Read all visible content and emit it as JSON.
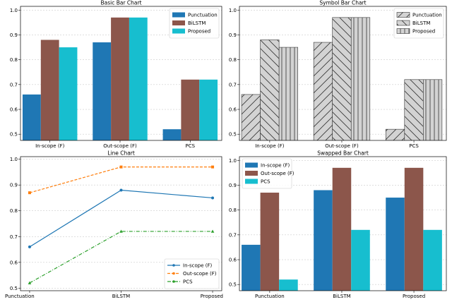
{
  "colors": {
    "blue": "#1f77b4",
    "brown": "#8c564b",
    "cyan": "#17becf",
    "orange": "#ff7f0e",
    "green": "#2ca02c",
    "hatch_fill": "#d3d3d3"
  },
  "chart_data": [
    {
      "type": "bar",
      "title": "Basic Bar Chart",
      "categories": [
        "In-scope (F)",
        "Out-scope (F)",
        "PCS"
      ],
      "series": [
        {
          "name": "Punctuation",
          "values": [
            0.66,
            0.87,
            0.52
          ],
          "color": "#1f77b4"
        },
        {
          "name": "BiLSTM",
          "values": [
            0.88,
            0.97,
            0.72
          ],
          "color": "#8c564b"
        },
        {
          "name": "Proposed",
          "values": [
            0.85,
            0.97,
            0.72
          ],
          "color": "#17becf"
        }
      ],
      "yticks": [
        "0.5",
        "0.6",
        "0.7",
        "0.8",
        "0.9",
        "1.0"
      ],
      "ylim": [
        0.475,
        1.015
      ],
      "grid": "y dashed",
      "legend": "top-right"
    },
    {
      "type": "bar",
      "title": "Symbol Bar Chart",
      "categories": [
        "In-scope (F)",
        "Out-scope (F)",
        "PCS"
      ],
      "series": [
        {
          "name": "Punctuation",
          "values": [
            0.66,
            0.87,
            0.52
          ],
          "hatch": "/"
        },
        {
          "name": "BiLSTM",
          "values": [
            0.88,
            0.97,
            0.72
          ],
          "hatch": "\\"
        },
        {
          "name": "Proposed",
          "values": [
            0.85,
            0.97,
            0.72
          ],
          "hatch": "|"
        }
      ],
      "yticks": [
        "0.5",
        "0.6",
        "0.7",
        "0.8",
        "0.9",
        "1.0"
      ],
      "ylim": [
        0.475,
        1.015
      ],
      "grid": "y dashed",
      "legend": "top-right"
    },
    {
      "type": "line",
      "title": "Line Chart",
      "categories": [
        "Punctuation",
        "BiLSTM",
        "Proposed"
      ],
      "series": [
        {
          "name": "In-scope (F)",
          "values": [
            0.66,
            0.88,
            0.85
          ],
          "color": "#1f77b4",
          "style": "solid",
          "marker": "circle"
        },
        {
          "name": "Out-scope (F)",
          "values": [
            0.87,
            0.97,
            0.97
          ],
          "color": "#ff7f0e",
          "style": "dashed",
          "marker": "square"
        },
        {
          "name": "PCS",
          "values": [
            0.52,
            0.72,
            0.72
          ],
          "color": "#2ca02c",
          "style": "dashdot",
          "marker": "triangle"
        }
      ],
      "yticks": [
        "0.5",
        "0.6",
        "0.7",
        "0.8",
        "0.9",
        "1.0"
      ],
      "ylim": [
        0.49,
        1.01
      ],
      "grid": "y dashed",
      "legend": "bottom-right"
    },
    {
      "type": "bar",
      "title": "Swapped Bar Chart",
      "categories": [
        "Punctuation",
        "BiLSTM",
        "Proposed"
      ],
      "series": [
        {
          "name": "In-scope (F)",
          "values": [
            0.66,
            0.88,
            0.85
          ],
          "color": "#1f77b4"
        },
        {
          "name": "Out-scope (F)",
          "values": [
            0.87,
            0.97,
            0.97
          ],
          "color": "#8c564b"
        },
        {
          "name": "PCS",
          "values": [
            0.52,
            0.72,
            0.72
          ],
          "color": "#17becf"
        }
      ],
      "yticks": [
        "0.5",
        "0.6",
        "0.7",
        "0.8",
        "0.9",
        "1.0"
      ],
      "ylim": [
        0.475,
        1.015
      ],
      "grid": "y dashed",
      "legend": "top-left"
    }
  ]
}
